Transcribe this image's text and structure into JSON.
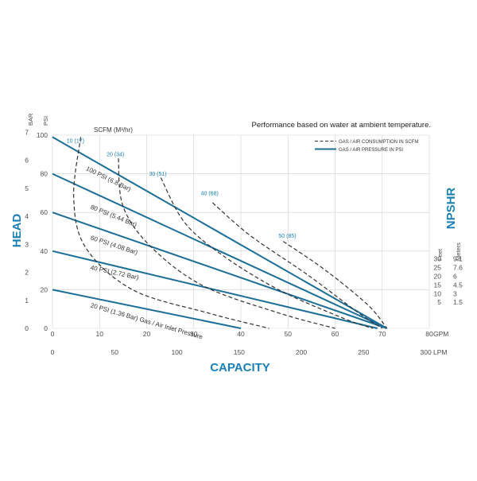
{
  "chart_data": {
    "type": "line",
    "title": "Performance based on water at ambient temperature.",
    "scfm_title": "SCFM (M³/hr)",
    "xlabel": "CAPACITY",
    "ylabel": "HEAD",
    "npshr_label": "NPSHR",
    "x_unit_gpm": "GPM",
    "x_unit_lpm": "LPM",
    "y_unit_bar": "BAR",
    "y_unit_psi": "PSI",
    "feet_label": "Feet",
    "meters_label": "Meters",
    "xlim_gpm": [
      0,
      80
    ],
    "ylim_psi": [
      0,
      100
    ],
    "x_ticks_gpm": [
      "0",
      "10",
      "20",
      "30",
      "40",
      "50",
      "60",
      "70",
      "80"
    ],
    "x_ticks_lpm": [
      {
        "v": 0,
        "label": "0"
      },
      {
        "v": 50,
        "label": "50"
      },
      {
        "v": 100,
        "label": "100"
      },
      {
        "v": 150,
        "label": "150"
      },
      {
        "v": 200,
        "label": "200"
      },
      {
        "v": 250,
        "label": "250"
      },
      {
        "v": 300,
        "label": "300"
      }
    ],
    "y_ticks_psi": [
      {
        "v": 0,
        "label": "0"
      },
      {
        "v": 20,
        "label": "20"
      },
      {
        "v": 40,
        "label": "40"
      },
      {
        "v": 60,
        "label": "60"
      },
      {
        "v": 80,
        "label": "80"
      },
      {
        "v": 100,
        "label": "100"
      }
    ],
    "y_ticks_bar": [
      {
        "v": 0,
        "label": "0"
      },
      {
        "v": 1,
        "label": "1"
      },
      {
        "v": 2,
        "label": "2"
      },
      {
        "v": 3,
        "label": "3"
      },
      {
        "v": 4,
        "label": "4"
      },
      {
        "v": 5,
        "label": "5"
      },
      {
        "v": 6,
        "label": "6"
      },
      {
        "v": 7,
        "label": "7"
      }
    ],
    "npshr_ticks": [
      {
        "psi": 36,
        "feet": "30",
        "meters": "9.1"
      },
      {
        "psi": 31.5,
        "feet": "25",
        "meters": "7.6"
      },
      {
        "psi": 27,
        "feet": "20",
        "meters": "6"
      },
      {
        "psi": 22.5,
        "feet": "15",
        "meters": "4.5"
      },
      {
        "psi": 18,
        "feet": "10",
        "meters": "3"
      },
      {
        "psi": 13.5,
        "feet": "5",
        "meters": "1.5"
      }
    ],
    "legend": {
      "position": "top-right",
      "dashed": "GAS / AIR CONSUMPTION IN SCFM",
      "solid": "GAS / AIR PRESSURE IN PSI"
    },
    "pressure_curves": [
      {
        "label": "100 PSI (6.8 Bar)",
        "points": [
          [
            0,
            99
          ],
          [
            71,
            0
          ]
        ],
        "label_at": [
          7,
          82
        ],
        "angle": 26
      },
      {
        "label": "80 PSI (5.44 Bar)",
        "points": [
          [
            0,
            80
          ],
          [
            71,
            0
          ]
        ],
        "label_at": [
          8,
          62
        ],
        "angle": 22
      },
      {
        "label": "60 PSI (4.08 Bar)",
        "points": [
          [
            0,
            60
          ],
          [
            71,
            0
          ]
        ],
        "label_at": [
          8,
          46
        ],
        "angle": 18
      },
      {
        "label": "40 PSI (2.72 Bar)",
        "points": [
          [
            0,
            40
          ],
          [
            69,
            0
          ]
        ],
        "label_at": [
          8,
          30.5
        ],
        "angle": 12
      },
      {
        "label": "20 PSI (1.36 Bar) Gas / Air Inlet Pressure",
        "points": [
          [
            0,
            20
          ],
          [
            40,
            0
          ]
        ],
        "label_at": [
          8,
          11
        ],
        "angle": 16
      }
    ],
    "consumption_curves": [
      {
        "label": "10 (17)",
        "points": [
          [
            6,
            99
          ],
          [
            4.5,
            68
          ],
          [
            7,
            42
          ],
          [
            17,
            20
          ],
          [
            33,
            8
          ],
          [
            46,
            0
          ]
        ],
        "label_at": [
          3,
          96
        ]
      },
      {
        "label": "20 (34)",
        "points": [
          [
            14,
            88
          ],
          [
            15,
            63
          ],
          [
            21,
            42
          ],
          [
            32,
            22
          ],
          [
            48,
            8
          ],
          [
            60,
            0
          ]
        ],
        "label_at": [
          11.5,
          89
        ]
      },
      {
        "label": "30 (51)",
        "points": [
          [
            23,
            78
          ],
          [
            28,
            55
          ],
          [
            36,
            38
          ],
          [
            48,
            20
          ],
          [
            62,
            5
          ],
          [
            68,
            0
          ]
        ],
        "label_at": [
          20.5,
          79
        ]
      },
      {
        "label": "40 (68)",
        "points": [
          [
            34,
            65
          ],
          [
            42,
            48
          ],
          [
            54,
            28
          ],
          [
            65,
            8
          ],
          [
            70,
            0
          ]
        ],
        "label_at": [
          31.5,
          69
        ]
      },
      {
        "label": "50 (85)",
        "points": [
          [
            49,
            45
          ],
          [
            58,
            30
          ],
          [
            67,
            12
          ],
          [
            71,
            0
          ]
        ],
        "label_at": [
          48,
          47
        ]
      }
    ]
  }
}
